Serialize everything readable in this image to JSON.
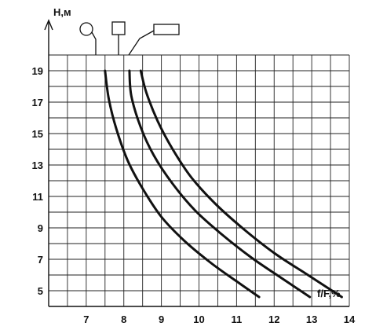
{
  "chart_data": {
    "type": "line",
    "title": "",
    "xlabel": "f/F,%",
    "ylabel": "H,м",
    "xlim": [
      6,
      14
    ],
    "ylim": [
      4,
      20
    ],
    "x_ticks": [
      "7",
      "8",
      "9",
      "10",
      "11",
      "12",
      "13",
      "14"
    ],
    "y_ticks": [
      "5",
      "7",
      "9",
      "11",
      "13",
      "15",
      "17",
      "19"
    ],
    "grid": true,
    "legend": "top (shape symbols)",
    "series": [
      {
        "symbol": "circle",
        "x": [
          7.5,
          7.6,
          7.8,
          8.1,
          8.5,
          9.0,
          9.6,
          10.3,
          11.0,
          11.6
        ],
        "y": [
          19,
          17.2,
          15.3,
          13.3,
          11.5,
          9.7,
          8.2,
          6.8,
          5.6,
          4.6
        ]
      },
      {
        "symbol": "square",
        "x": [
          8.15,
          8.2,
          8.45,
          8.8,
          9.3,
          9.9,
          10.6,
          11.4,
          12.2,
          12.95
        ],
        "y": [
          19,
          17.4,
          15.4,
          13.6,
          11.8,
          10.1,
          8.6,
          7.1,
          5.8,
          4.6
        ]
      },
      {
        "symbol": "rectangle",
        "x": [
          8.45,
          8.6,
          8.9,
          9.3,
          9.8,
          10.45,
          11.2,
          12.0,
          12.9,
          13.8
        ],
        "y": [
          19,
          17.6,
          15.8,
          14.0,
          12.2,
          10.5,
          8.9,
          7.4,
          6.0,
          4.6
        ]
      }
    ]
  }
}
